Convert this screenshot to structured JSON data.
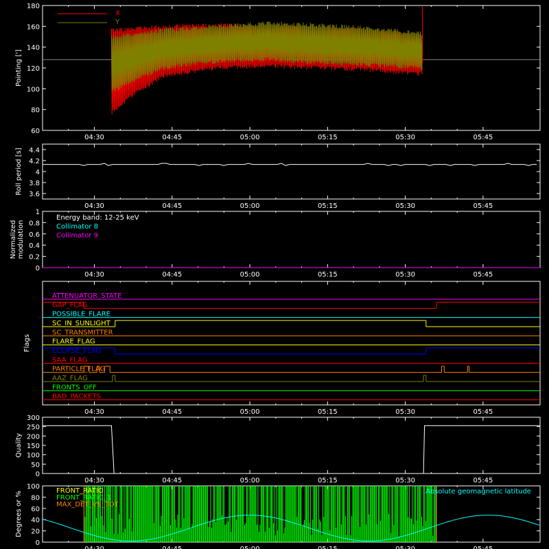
{
  "colors": {
    "background": "#000000",
    "axes": "#ffffff",
    "x_series": "#ff0000",
    "y_series": "#808000",
    "cyan": "#00ffff",
    "magenta": "#ff00ff",
    "green": "#00ff00",
    "orange": "#ff8000",
    "yellow": "#ffff00",
    "blue": "#0000ff"
  },
  "time_ticks": [
    "04:30",
    "04:45",
    "05:00",
    "05:15",
    "05:30",
    "05:45"
  ],
  "chart_data": [
    {
      "id": "pointing",
      "type": "line",
      "ylabel": "Pointing [']",
      "ylim": [
        60,
        180
      ],
      "yticks": [
        60,
        80,
        100,
        120,
        140,
        160,
        180
      ],
      "xlim": [
        "04:20",
        "05:56"
      ],
      "series": [
        {
          "name": "X",
          "color": "#ff0000",
          "data_start": "04:33",
          "data_end": "05:33",
          "upper_envelope": [
            [
              0,
              158
            ],
            [
              5,
              160
            ],
            [
              10,
              162
            ],
            [
              20,
              163
            ],
            [
              30,
              162
            ],
            [
              40,
              160
            ],
            [
              50,
              158
            ],
            [
              60,
              153
            ]
          ],
          "lower_envelope": [
            [
              0,
              75
            ],
            [
              5,
              95
            ],
            [
              10,
              110
            ],
            [
              20,
              118
            ],
            [
              30,
              120
            ],
            [
              40,
              118
            ],
            [
              50,
              116
            ],
            [
              60,
              112
            ]
          ]
        },
        {
          "name": "Y",
          "color": "#808000",
          "data_start": "04:33",
          "data_end": "05:33",
          "upper_envelope": [
            [
              0,
              152
            ],
            [
              5,
              155
            ],
            [
              10,
              158
            ],
            [
              20,
              162
            ],
            [
              30,
              165
            ],
            [
              40,
              163
            ],
            [
              50,
              160
            ],
            [
              60,
              155
            ]
          ],
          "lower_envelope": [
            [
              0,
              95
            ],
            [
              5,
              108
            ],
            [
              10,
              118
            ],
            [
              20,
              124
            ],
            [
              30,
              126
            ],
            [
              40,
              123
            ],
            [
              50,
              121
            ],
            [
              60,
              118
            ]
          ]
        }
      ],
      "reference_line": 128
    },
    {
      "id": "roll-period",
      "type": "line",
      "ylabel": "Roll period [s]",
      "ylim": [
        3.5,
        4.5
      ],
      "yticks": [
        3.6,
        3.8,
        4.0,
        4.2,
        4.4
      ],
      "series": [
        {
          "values_constant": 4.13,
          "color": "#ffffff"
        }
      ]
    },
    {
      "id": "modulation",
      "type": "line",
      "ylabel": "Normalized modulation",
      "ylim": [
        0,
        1
      ],
      "yticks": [
        0.0,
        0.2,
        0.4,
        0.6,
        0.8,
        1.0
      ],
      "annotations": [
        "Energy band: 12-25 keV",
        "Collimator 8",
        "Collimator 9"
      ],
      "series": [
        {
          "values_constant": 0.0,
          "color": "#ff00ff"
        }
      ]
    },
    {
      "id": "flags",
      "type": "line",
      "ylabel": "Flags",
      "flags": [
        {
          "label": "ATTENUATOR_STATE",
          "color": "#ff00ff",
          "segments": [
            [
              0,
              96,
              0
            ]
          ]
        },
        {
          "label": "GAP_FLAG",
          "color": "#ff0000",
          "segments": [
            [
              0,
              8,
              1
            ],
            [
              8,
              76,
              0
            ],
            [
              76,
              96,
              1
            ]
          ]
        },
        {
          "label": "POSSIBLE_FLARE",
          "color": "#00ffff",
          "segments": [
            [
              0,
              96,
              0
            ]
          ]
        },
        {
          "label": "SC_IN_SUNLIGHT",
          "color": "#ffff00",
          "segments": [
            [
              0,
              14,
              0
            ],
            [
              14,
              74,
              1
            ],
            [
              74,
              96,
              0
            ]
          ]
        },
        {
          "label": "SC_TRANSMITTER",
          "color": "#ff8000",
          "segments": [
            [
              0,
              96,
              0
            ]
          ]
        },
        {
          "label": "FLARE_FLAG",
          "color": "#ffff00",
          "segments": [
            [
              0,
              96,
              0
            ]
          ]
        },
        {
          "label": "ECLIPSE_FLAG",
          "color": "#0000ff",
          "segments": [
            [
              0,
              14,
              1
            ],
            [
              14,
              74,
              0
            ],
            [
              74,
              96,
              1
            ]
          ]
        },
        {
          "label": "SAA_FLAG",
          "color": "#ff0000",
          "segments": [
            [
              0,
              96,
              0
            ]
          ]
        },
        {
          "label": "PARTICLE_FLAG",
          "color": "#ff8000",
          "segments": [
            [
              0,
              8,
              0
            ],
            [
              8,
              9,
              1
            ],
            [
              9,
              10.5,
              0
            ],
            [
              10.5,
              11,
              1
            ],
            [
              11,
              12,
              0
            ],
            [
              12,
              13,
              1
            ],
            [
              13,
              77,
              0
            ],
            [
              77,
              77.5,
              1
            ],
            [
              77.5,
              82,
              0
            ],
            [
              82,
              82.3,
              1
            ],
            [
              82.3,
              96,
              0
            ]
          ]
        },
        {
          "label": "AAZ_FLAG",
          "color": "#808000",
          "segments": [
            [
              0,
              13.5,
              0
            ],
            [
              13.5,
              14,
              1
            ],
            [
              14,
              73.5,
              0
            ],
            [
              73.5,
              74,
              1
            ],
            [
              74,
              96,
              0
            ]
          ]
        },
        {
          "label": "FRONTS_OFF",
          "color": "#00ff00",
          "segments": [
            [
              0,
              96,
              0
            ]
          ]
        },
        {
          "label": "BAD_PACKETS",
          "color": "#ff0000",
          "segments": [
            [
              0,
              96,
              0
            ]
          ]
        }
      ]
    },
    {
      "id": "quality",
      "type": "line",
      "ylabel": "Quality",
      "ylim": [
        0,
        300
      ],
      "yticks": [
        0,
        50,
        100,
        150,
        200,
        250,
        300
      ],
      "series": [
        {
          "color": "#ffffff",
          "points": [
            [
              0,
              255
            ],
            [
              13.3,
              255
            ],
            [
              13.8,
              0
            ],
            [
              73.5,
              0
            ],
            [
              73.7,
              255
            ],
            [
              96,
              255
            ]
          ]
        }
      ]
    },
    {
      "id": "front-ratio",
      "type": "line",
      "ylabel": "Degrees or %",
      "ylim": [
        0,
        100
      ],
      "yticks": [
        0,
        20,
        40,
        60,
        80,
        100
      ],
      "legend": [
        "FRONT_RATIO",
        "FRONT_RATIO_1",
        "MAX_DET_VS_TOT"
      ],
      "annotation": "Absolute geomagnetic latitude",
      "series": [
        {
          "name": "Absolute geomagnetic latitude",
          "color": "#00ffff",
          "type": "sine",
          "min": 2,
          "max": 48
        },
        {
          "name": "FRONT_RATIO",
          "color": "#00ff00",
          "data_start_min": 8,
          "data_end_min": 76
        }
      ]
    }
  ]
}
